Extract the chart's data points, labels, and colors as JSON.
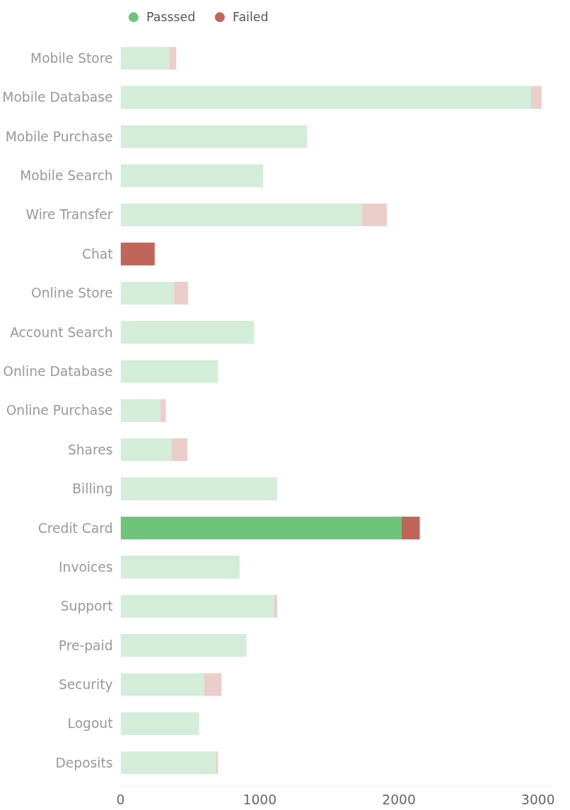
{
  "chart_data": {
    "type": "bar",
    "orientation": "horizontal",
    "stacked": true,
    "categories": [
      "Mobile Store",
      "Mobile Database",
      "Mobile Purchase",
      "Mobile Search",
      "Wire Transfer",
      "Chat",
      "Online Store",
      "Account Search",
      "Online Database",
      "Online Purchase",
      "Shares",
      "Billing",
      "Credit Card",
      "Invoices",
      "Support",
      "Pre-paid",
      "Security",
      "Logout",
      "Deposits"
    ],
    "series": [
      {
        "name": "Passsed",
        "color": "#6fc47c",
        "colors": [
          "#d4edd9",
          "#d4edd9",
          "#d4edd9",
          "#d4edd9",
          "#d4edd9",
          "#6fc47c",
          "#d4edd9",
          "#d4edd9",
          "#d4edd9",
          "#d4edd9",
          "#d4edd9",
          "#d4edd9",
          "#6fc47c",
          "#d4edd9",
          "#d4edd9",
          "#d4edd9",
          "#d4edd9",
          "#d4edd9",
          "#d4edd9"
        ],
        "values": [
          350,
          2950,
          1340,
          1025,
          1735,
          0,
          385,
          960,
          700,
          285,
          365,
          1125,
          2020,
          855,
          1105,
          905,
          600,
          565,
          685
        ]
      },
      {
        "name": "Failed",
        "color": "#bf655a",
        "colors": [
          "#ebcdca",
          "#ebcdca",
          "#ebcdca",
          "#ebcdca",
          "#ebcdca",
          "#bf655a",
          "#ebcdca",
          "#ebcdca",
          "#ebcdca",
          "#ebcdca",
          "#ebcdca",
          "#ebcdca",
          "#bf655a",
          "#ebcdca",
          "#ebcdca",
          "#ebcdca",
          "#ebcdca",
          "#ebcdca",
          "#ebcdca"
        ],
        "values": [
          50,
          75,
          0,
          0,
          180,
          245,
          100,
          0,
          0,
          40,
          115,
          0,
          130,
          0,
          20,
          0,
          125,
          0,
          15
        ]
      }
    ],
    "xlim": [
      0,
      3100
    ],
    "xticks": [
      0,
      1000,
      2000,
      3000
    ],
    "grid": false,
    "legend": "top"
  }
}
